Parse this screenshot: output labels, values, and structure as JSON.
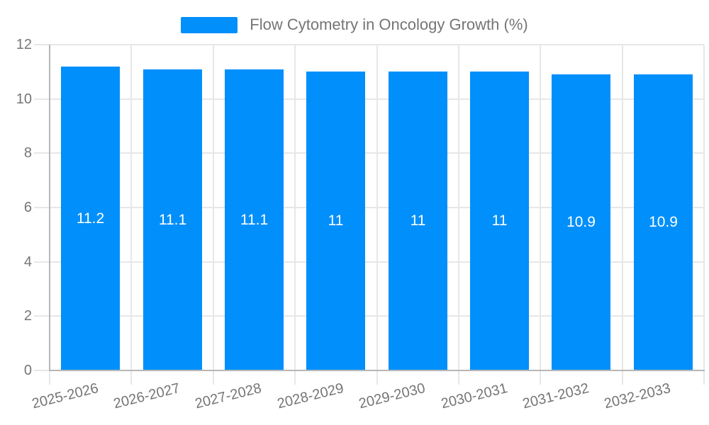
{
  "colors": {
    "bar": "#008FFB",
    "axis_line": "#b6b6b6",
    "gridline": "#e7e7e7",
    "tick_label": "#757575",
    "legend_text": "#757575",
    "data_label": "#ffffff",
    "background": "#ffffff"
  },
  "chart_data": {
    "type": "bar",
    "title": "Flow Cytometry in Oncology Growth (%)",
    "xlabel": "",
    "ylabel": "",
    "categories": [
      "2025-2026",
      "2026-2027",
      "2027-2028",
      "2028-2029",
      "2029-2030",
      "2030-2031",
      "2031-2032",
      "2032-2033"
    ],
    "values": [
      11.2,
      11.1,
      11.1,
      11,
      11,
      11,
      10.9,
      10.9
    ],
    "data_labels": [
      "11.2",
      "11.1",
      "11.1",
      "11",
      "11",
      "11",
      "10.9",
      "10.9"
    ],
    "ylim": [
      0,
      12
    ],
    "yticks": [
      0,
      2,
      4,
      6,
      8,
      10,
      12
    ],
    "ytick_labels": [
      "0",
      "2",
      "4",
      "6",
      "8",
      "10",
      "12"
    ],
    "grid": true,
    "legend_position": "top",
    "data_label_position": "center"
  }
}
